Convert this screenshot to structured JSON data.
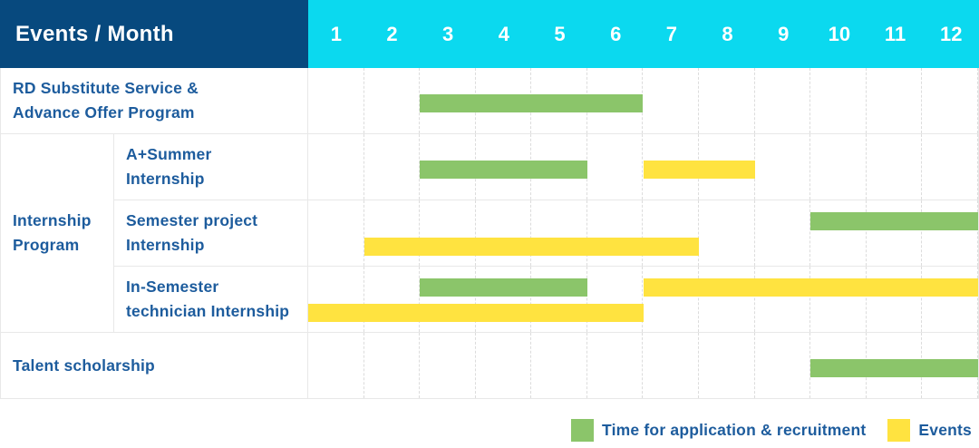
{
  "header": {
    "title": "Events / Month",
    "months": [
      "1",
      "2",
      "3",
      "4",
      "5",
      "6",
      "7",
      "8",
      "9",
      "10",
      "11",
      "12"
    ]
  },
  "colors": {
    "header_bg": "#07497e",
    "header_text": "#ffffff",
    "month_header_bg": "#0bd9ef",
    "recruitment": "#8bc56a",
    "event": "#ffe340",
    "label_text": "#1d5c9d",
    "grid_line": "#e8e8e8",
    "month_divider": "#dcdcdc"
  },
  "legend": {
    "items": [
      {
        "series": "recruitment",
        "label": "Time for application & recruitment",
        "color": "#8bc56a"
      },
      {
        "series": "event",
        "label": "Events",
        "color": "#ffe340"
      }
    ]
  },
  "chart_data": {
    "type": "gantt",
    "x_unit": "month",
    "x_range": [
      1,
      12
    ],
    "x_ticks": [
      1,
      2,
      3,
      4,
      5,
      6,
      7,
      8,
      9,
      10,
      11,
      12
    ],
    "series_legend": [
      {
        "name": "Time for application & recruitment",
        "color": "#8bc56a"
      },
      {
        "name": "Events",
        "color": "#ffe340"
      }
    ],
    "rows": [
      {
        "label": "RD Substitute Service & Advance Offer Program",
        "label_lines": [
          "RD Substitute Service &",
          "Advance Offer Program"
        ],
        "group": null,
        "lanes": 1,
        "bars": [
          {
            "series": "recruitment",
            "start_month": 3,
            "end_month": 6,
            "lane": 0
          }
        ]
      },
      {
        "label": "A+Summer Internship",
        "label_lines": [
          "A+Summer",
          "Internship"
        ],
        "group": "Internship Program",
        "lanes": 1,
        "bars": [
          {
            "series": "recruitment",
            "start_month": 3,
            "end_month": 5,
            "lane": 0
          },
          {
            "series": "event",
            "start_month": 7,
            "end_month": 8,
            "lane": 0
          }
        ]
      },
      {
        "label": "Semester project Internship",
        "label_lines": [
          "Semester project",
          "Internship"
        ],
        "group": "Internship Program",
        "lanes": 2,
        "bars": [
          {
            "series": "recruitment",
            "start_month": 10,
            "end_month": 12,
            "lane": 0
          },
          {
            "series": "event",
            "start_month": 2,
            "end_month": 7,
            "lane": 1
          }
        ]
      },
      {
        "label": "In-Semester technician Internship",
        "label_lines": [
          "In-Semester",
          "technician Internship"
        ],
        "group": "Internship Program",
        "lanes": 2,
        "bars": [
          {
            "series": "recruitment",
            "start_month": 3,
            "end_month": 5,
            "lane": 0
          },
          {
            "series": "event",
            "start_month": 7,
            "end_month": 12,
            "lane": 0
          },
          {
            "series": "event",
            "start_month": 1,
            "end_month": 6,
            "lane": 1
          }
        ]
      },
      {
        "label": "Talent scholarship",
        "label_lines": [
          "Talent scholarship"
        ],
        "group": null,
        "lanes": 1,
        "bars": [
          {
            "series": "recruitment",
            "start_month": 10,
            "end_month": 12,
            "lane": 0
          }
        ]
      }
    ],
    "group_label_lines": {
      "Internship Program": [
        "Internship",
        "Program"
      ]
    }
  }
}
